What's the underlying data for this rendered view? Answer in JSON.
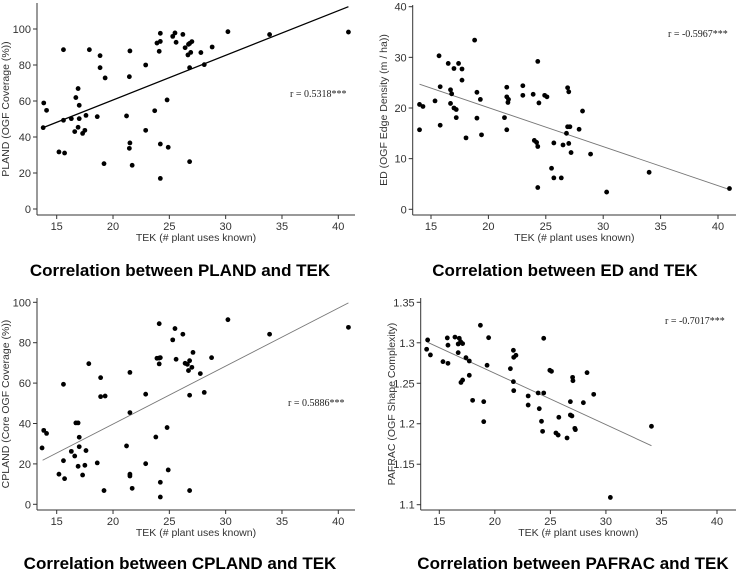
{
  "chart_data": [
    {
      "type": "scatter",
      "title": "Correlation between PLAND and TEK",
      "xlabel": "TEK (# plant uses known)",
      "ylabel": "PLAND (OGF Coverage (%))",
      "annotation": "r = 0.5318***",
      "xlim": [
        13.5,
        41.5
      ],
      "ylim": [
        -3,
        115
      ],
      "xticks": [
        15,
        20,
        25,
        30,
        35,
        40
      ],
      "yticks": [
        0,
        20,
        40,
        60,
        80,
        100
      ],
      "fit_line": [
        [
          13.8,
          45.2
        ],
        [
          40.9,
          112.4
        ]
      ],
      "points": [
        [
          13.8,
          45.2
        ],
        [
          13.85,
          58.9
        ],
        [
          14.1,
          54.8
        ],
        [
          15.2,
          31.7
        ],
        [
          15.6,
          88.5
        ],
        [
          15.6,
          49.3
        ],
        [
          15.7,
          31.1
        ],
        [
          16.3,
          50.2
        ],
        [
          16.6,
          43
        ],
        [
          16.7,
          61.9
        ],
        [
          16.9,
          66.9
        ],
        [
          16.9,
          45.4
        ],
        [
          17.0,
          57.6
        ],
        [
          17.0,
          50.2
        ],
        [
          17.3,
          42
        ],
        [
          17.5,
          43.7
        ],
        [
          17.6,
          52
        ],
        [
          17.9,
          88.5
        ],
        [
          18.6,
          51.3
        ],
        [
          18.85,
          85.2
        ],
        [
          18.85,
          78.5
        ],
        [
          19.2,
          25.2
        ],
        [
          19.3,
          72.8
        ],
        [
          21.2,
          51.7
        ],
        [
          21.5,
          87.8
        ],
        [
          21.45,
          73.5
        ],
        [
          21.45,
          33.7
        ],
        [
          21.5,
          36.7
        ],
        [
          21.7,
          24.3
        ],
        [
          22.9,
          80
        ],
        [
          22.9,
          43.7
        ],
        [
          23.7,
          54.6
        ],
        [
          23.9,
          92.2
        ],
        [
          24.2,
          93.1
        ],
        [
          24.2,
          97.6
        ],
        [
          24.1,
          87.6
        ],
        [
          24.2,
          36.1
        ],
        [
          24.2,
          17
        ],
        [
          24.8,
          60.6
        ],
        [
          24.9,
          34.3
        ],
        [
          25.3,
          95.9
        ],
        [
          25.5,
          97.8
        ],
        [
          25.6,
          92.6
        ],
        [
          26.2,
          97
        ],
        [
          26.4,
          89.6
        ],
        [
          26.65,
          85.6
        ],
        [
          26.7,
          91.5
        ],
        [
          26.8,
          92
        ],
        [
          26.8,
          78.5
        ],
        [
          26.8,
          26.3
        ],
        [
          26.9,
          87
        ],
        [
          27.0,
          93
        ],
        [
          27.8,
          86.9
        ],
        [
          28.1,
          80.2
        ],
        [
          28.8,
          90
        ],
        [
          30.2,
          98.5
        ],
        [
          33.9,
          96.9
        ],
        [
          40.9,
          98.3
        ]
      ]
    },
    {
      "type": "scatter",
      "title": "Correlation between ED and TEK",
      "xlabel": "TEK (# plant uses known)",
      "ylabel": "ED (OGF Edge Density (m / ha))",
      "annotation": "r = -0.5967***",
      "xlim": [
        13.5,
        41.5
      ],
      "ylim": [
        -1,
        41
      ],
      "xticks": [
        15,
        20,
        25,
        30,
        35,
        40
      ],
      "yticks": [
        0,
        10,
        20,
        30,
        40
      ],
      "fit_line": [
        [
          14.0,
          24.7
        ],
        [
          41.0,
          3.9
        ]
      ],
      "points": [
        [
          14.0,
          20.7
        ],
        [
          14.0,
          15.7
        ],
        [
          14.3,
          20.3
        ],
        [
          15.35,
          21.4
        ],
        [
          15.7,
          30.3
        ],
        [
          15.8,
          24.2
        ],
        [
          15.8,
          16.6
        ],
        [
          16.5,
          28.8
        ],
        [
          16.7,
          23.6
        ],
        [
          16.7,
          20.9
        ],
        [
          16.8,
          22.8
        ],
        [
          17.0,
          27.8
        ],
        [
          17.0,
          20
        ],
        [
          17.2,
          19.7
        ],
        [
          17.2,
          18.1
        ],
        [
          17.4,
          28.8
        ],
        [
          17.7,
          27.7
        ],
        [
          17.7,
          25.5
        ],
        [
          18.05,
          14.1
        ],
        [
          18.8,
          33.4
        ],
        [
          19.0,
          23.1
        ],
        [
          19.0,
          18
        ],
        [
          19.3,
          21.7
        ],
        [
          19.4,
          14.7
        ],
        [
          21.4,
          18.1
        ],
        [
          21.6,
          24.1
        ],
        [
          21.6,
          22.2
        ],
        [
          21.7,
          21.1
        ],
        [
          21.75,
          21.7
        ],
        [
          21.6,
          15.7
        ],
        [
          23.0,
          24.4
        ],
        [
          23.0,
          22.5
        ],
        [
          23.9,
          22.7
        ],
        [
          24.0,
          13.6
        ],
        [
          24.2,
          13.2
        ],
        [
          24.3,
          12.4
        ],
        [
          24.3,
          29.2
        ],
        [
          24.4,
          21
        ],
        [
          24.3,
          4.3
        ],
        [
          24.9,
          22.5
        ],
        [
          25.1,
          22.2
        ],
        [
          25.5,
          8.1
        ],
        [
          25.7,
          6.2
        ],
        [
          25.7,
          13.1
        ],
        [
          26.35,
          6.2
        ],
        [
          26.5,
          12.7
        ],
        [
          26.8,
          15
        ],
        [
          26.9,
          16.3
        ],
        [
          26.9,
          24
        ],
        [
          27.0,
          23.2
        ],
        [
          27.0,
          13
        ],
        [
          27.1,
          16.3
        ],
        [
          27.2,
          11.2
        ],
        [
          27.9,
          15.8
        ],
        [
          28.2,
          19.4
        ],
        [
          28.9,
          10.9
        ],
        [
          30.3,
          3.4
        ],
        [
          34.0,
          7.3
        ],
        [
          41.0,
          4.1
        ]
      ]
    },
    {
      "type": "scatter",
      "title": "Correlation between CPLAND and TEK",
      "xlabel": "TEK (# plant uses known)",
      "ylabel": "CPLAND (Core OGF Coverage (%))",
      "annotation": "r =  0.5886***",
      "xlim": [
        13.5,
        41.5
      ],
      "ylim": [
        -3,
        101
      ],
      "xticks": [
        15,
        20,
        25,
        30,
        35,
        40
      ],
      "yticks": [
        0,
        20,
        40,
        60,
        80,
        100
      ],
      "fit_line": [
        [
          13.75,
          21.8
        ],
        [
          40.9,
          99.7
        ]
      ],
      "points": [
        [
          13.7,
          27.9
        ],
        [
          13.85,
          36.6
        ],
        [
          14.1,
          35.1
        ],
        [
          15.2,
          14.9
        ],
        [
          15.6,
          59.4
        ],
        [
          15.6,
          21.6
        ],
        [
          15.7,
          12.7
        ],
        [
          16.3,
          26.2
        ],
        [
          16.6,
          23.9
        ],
        [
          16.7,
          40.3
        ],
        [
          16.9,
          40.3
        ],
        [
          16.9,
          18.8
        ],
        [
          17.0,
          33.2
        ],
        [
          17.0,
          28.5
        ],
        [
          17.3,
          14.5
        ],
        [
          17.5,
          19.3
        ],
        [
          17.6,
          26.6
        ],
        [
          17.85,
          69.6
        ],
        [
          18.6,
          20.5
        ],
        [
          18.9,
          62.7
        ],
        [
          18.9,
          53.3
        ],
        [
          19.2,
          6.8
        ],
        [
          19.3,
          53.6
        ],
        [
          21.2,
          28.9
        ],
        [
          21.5,
          65.3
        ],
        [
          21.5,
          45.4
        ],
        [
          21.5,
          14.9
        ],
        [
          21.5,
          14
        ],
        [
          21.7,
          7.9
        ],
        [
          22.9,
          54.5
        ],
        [
          22.9,
          20.1
        ],
        [
          23.8,
          33.3
        ],
        [
          23.9,
          72.3
        ],
        [
          24.1,
          72.4
        ],
        [
          24.2,
          72.6
        ],
        [
          24.1,
          69.5
        ],
        [
          24.1,
          89.4
        ],
        [
          24.2,
          10.9
        ],
        [
          24.2,
          3.6
        ],
        [
          24.8,
          38
        ],
        [
          24.9,
          17
        ],
        [
          25.3,
          81.4
        ],
        [
          25.5,
          87
        ],
        [
          25.6,
          71.8
        ],
        [
          26.2,
          84.2
        ],
        [
          26.4,
          69.8
        ],
        [
          26.6,
          69.3
        ],
        [
          26.7,
          66.2
        ],
        [
          26.8,
          71.1
        ],
        [
          26.8,
          54
        ],
        [
          26.8,
          6.8
        ],
        [
          27.0,
          67.8
        ],
        [
          27.1,
          75.2
        ],
        [
          27.75,
          64.7
        ],
        [
          28.1,
          55.4
        ],
        [
          28.75,
          72.6
        ],
        [
          30.2,
          91.4
        ],
        [
          33.9,
          84.2
        ],
        [
          40.9,
          87.6
        ]
      ]
    },
    {
      "type": "scatter",
      "title": "Correlation between PAFRAC and TEK",
      "xlabel": "TEK (# plant uses known)",
      "ylabel": "PAFRAC (OGF Shape Complexity)",
      "annotation": "r = -0.7017***",
      "xlim": [
        13.5,
        41.5
      ],
      "ylim": [
        1.095,
        1.352
      ],
      "xticks": [
        15,
        20,
        25,
        30,
        35,
        40
      ],
      "yticks": [
        1.1,
        1.15,
        1.2,
        1.25,
        1.3,
        1.35
      ],
      "fit_line": [
        [
          13.95,
          1.3006
        ],
        [
          34.1,
          1.1729
        ]
      ],
      "points": [
        [
          13.86,
          1.292
        ],
        [
          13.95,
          1.3035
        ],
        [
          14.2,
          1.285
        ],
        [
          15.33,
          1.2767
        ],
        [
          15.72,
          1.306
        ],
        [
          15.78,
          1.297
        ],
        [
          15.78,
          1.2746
        ],
        [
          16.41,
          1.307
        ],
        [
          16.7,
          1.2985
        ],
        [
          16.7,
          1.2878
        ],
        [
          16.8,
          1.3055
        ],
        [
          16.92,
          1.3014
        ],
        [
          17.1,
          1.299
        ],
        [
          16.95,
          1.251
        ],
        [
          17.1,
          1.254
        ],
        [
          17.4,
          1.2816
        ],
        [
          17.7,
          1.2775
        ],
        [
          17.7,
          1.2598
        ],
        [
          18.0,
          1.2289
        ],
        [
          18.7,
          1.3216
        ],
        [
          19.0,
          1.2273
        ],
        [
          19.0,
          1.2026
        ],
        [
          19.3,
          1.2722
        ],
        [
          19.44,
          1.3063
        ],
        [
          21.4,
          1.268
        ],
        [
          21.67,
          1.2907
        ],
        [
          21.7,
          1.282
        ],
        [
          21.9,
          1.2845
        ],
        [
          21.67,
          1.252
        ],
        [
          21.7,
          1.2409
        ],
        [
          23.0,
          1.2343
        ],
        [
          23.0,
          1.2231
        ],
        [
          23.9,
          1.238
        ],
        [
          24.0,
          1.2186
        ],
        [
          24.2,
          1.203
        ],
        [
          24.3,
          1.1906
        ],
        [
          24.4,
          1.3055
        ],
        [
          24.4,
          1.238
        ],
        [
          24.95,
          1.266
        ],
        [
          25.1,
          1.2647
        ],
        [
          25.5,
          1.1886
        ],
        [
          25.7,
          1.186
        ],
        [
          25.76,
          1.208
        ],
        [
          26.5,
          1.1824
        ],
        [
          26.8,
          1.2273
        ],
        [
          26.8,
          1.2108
        ],
        [
          26.94,
          1.2096
        ],
        [
          27.0,
          1.2573
        ],
        [
          27.03,
          1.2532
        ],
        [
          27.2,
          1.1943
        ],
        [
          27.25,
          1.1927
        ],
        [
          27.97,
          1.226
        ],
        [
          28.3,
          1.2631
        ],
        [
          28.9,
          1.2363
        ],
        [
          30.4,
          1.109
        ],
        [
          34.1,
          1.1968
        ]
      ]
    }
  ]
}
